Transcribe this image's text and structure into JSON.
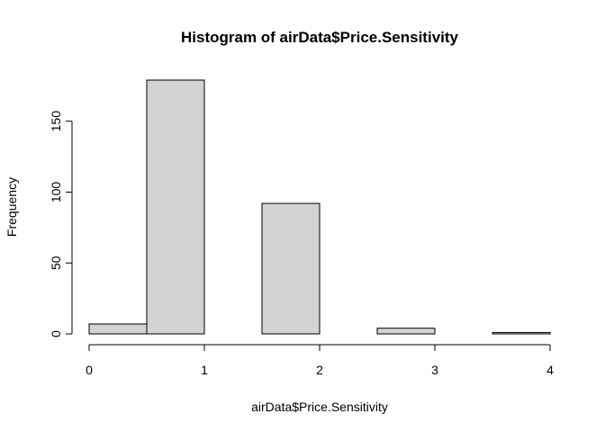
{
  "chart_data": {
    "type": "bar",
    "title": "Histogram of airData$Price.Sensitivity",
    "xlabel": "airData$Price.Sensitivity",
    "ylabel": "Frequency",
    "bins": [
      {
        "start": 0.0,
        "end": 0.5,
        "value": 7
      },
      {
        "start": 0.5,
        "end": 1.0,
        "value": 179
      },
      {
        "start": 1.0,
        "end": 1.5,
        "value": 0
      },
      {
        "start": 1.5,
        "end": 2.0,
        "value": 92
      },
      {
        "start": 2.0,
        "end": 2.5,
        "value": 0
      },
      {
        "start": 2.5,
        "end": 3.0,
        "value": 4
      },
      {
        "start": 3.0,
        "end": 3.5,
        "value": 0
      },
      {
        "start": 3.5,
        "end": 4.0,
        "value": 1
      }
    ],
    "xlim": [
      0,
      4
    ],
    "ylim": [
      0,
      179
    ],
    "x_ticks": [
      0,
      1,
      2,
      3,
      4
    ],
    "y_ticks": [
      0,
      50,
      100,
      150
    ],
    "bar_fill": "#d3d3d3",
    "bar_stroke": "#000000",
    "grid": false,
    "legend": "none"
  }
}
